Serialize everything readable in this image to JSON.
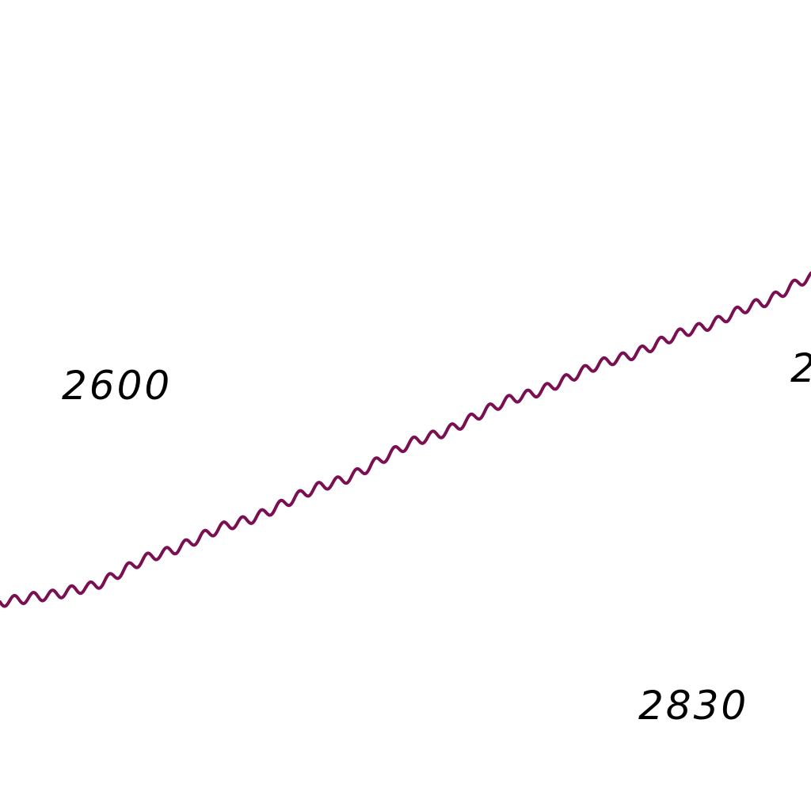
{
  "map": {
    "background": "#ffffff",
    "boundary": {
      "style": "wavy",
      "color": "#7a0f52"
    },
    "labels": [
      {
        "text": "2600"
      },
      {
        "text": "2830"
      },
      {
        "text": "2"
      }
    ]
  }
}
